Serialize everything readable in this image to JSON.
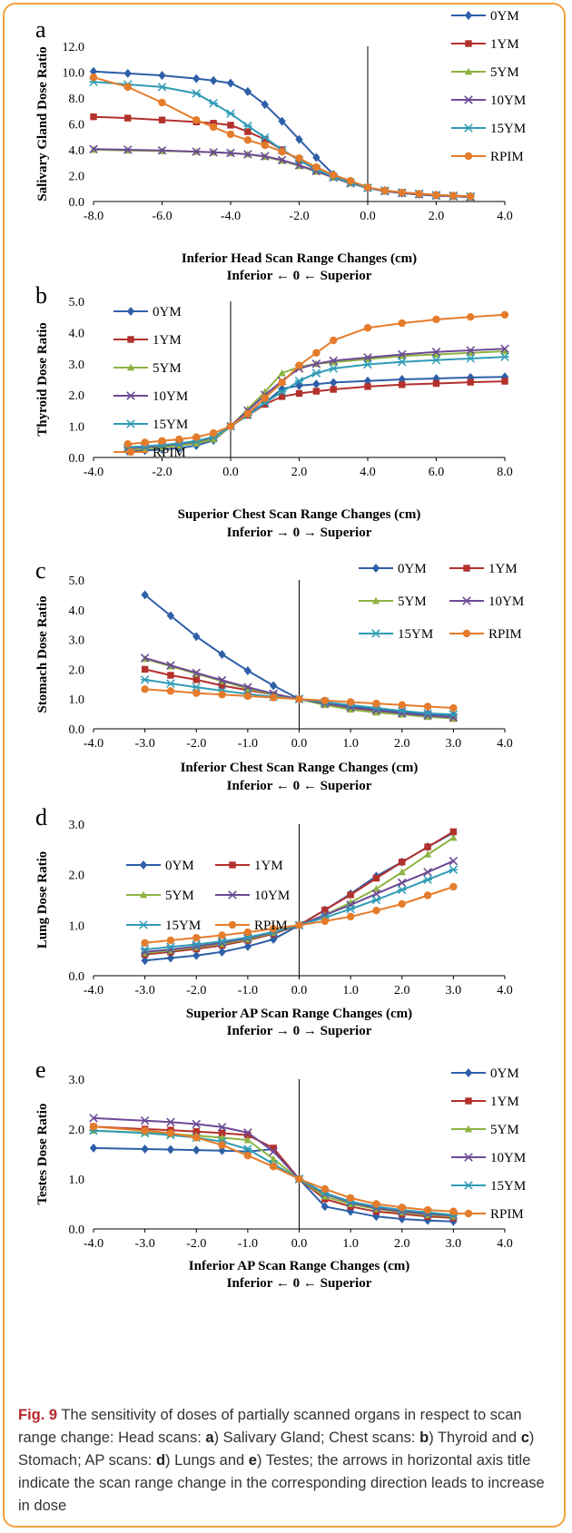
{
  "caption": {
    "label": "Fig. 9",
    "parts": [
      {
        "t": " The sensitivity of doses of partially scanned organs in respect to scan range change: Head scans: "
      },
      {
        "t": "a",
        "b": true
      },
      {
        "t": ") Salivary Gland; Chest scans: "
      },
      {
        "t": "b",
        "b": true
      },
      {
        "t": ") Thyroid and "
      },
      {
        "t": "c",
        "b": true
      },
      {
        "t": ") Stomach; AP scans: "
      },
      {
        "t": "d",
        "b": true
      },
      {
        "t": ") Lungs and "
      },
      {
        "t": "e",
        "b": true
      },
      {
        "t": ") Testes; the arrows in horizontal axis title indicate the scan range change in the corresponding direction leads to increase in dose"
      }
    ]
  },
  "series_colors": [
    "#2e5fa8",
    "#b3312c",
    "#8db342",
    "#6c4a95",
    "#2f9cb5",
    "#e57c2b"
  ],
  "series_markers": [
    "diamond",
    "square",
    "triangle",
    "x",
    "star",
    "circle"
  ],
  "chart_data": [
    {
      "panel": "a",
      "type": "line",
      "ylabel": "Salivary Gland Dose Ratio",
      "xlabel": "Inferior Head Scan Range Changes (cm)",
      "xlabel2": "Inferior ← 0 ← Superior",
      "xlim": [
        -8,
        4
      ],
      "xticks": [
        -8,
        -6,
        -4,
        -2,
        0,
        2,
        4
      ],
      "ylim": [
        0,
        12
      ],
      "yticks": [
        0,
        2,
        4,
        6,
        8,
        10,
        12
      ],
      "legend": "right-column",
      "x": [
        -8,
        -7,
        -6,
        -5,
        -4.5,
        -4,
        -3.5,
        -3,
        -2.5,
        -2,
        -1.5,
        -1,
        -0.5,
        0,
        0.5,
        1,
        1.5,
        2,
        2.5,
        3
      ],
      "series": [
        {
          "name": "0YM",
          "values": [
            10.05,
            9.9,
            9.75,
            9.5,
            9.35,
            9.15,
            8.5,
            7.5,
            6.2,
            4.8,
            3.4,
            2.1,
            1.5,
            1.05,
            0.85,
            0.65,
            0.55,
            0.5,
            0.45,
            0.4
          ]
        },
        {
          "name": "1YM",
          "values": [
            6.55,
            6.45,
            6.3,
            6.15,
            6.05,
            5.9,
            5.4,
            4.8,
            4.0,
            3.2,
            2.45,
            1.9,
            1.45,
            1.05,
            0.8,
            0.65,
            0.55,
            0.45,
            0.4,
            0.35
          ]
        },
        {
          "name": "5YM",
          "values": [
            4.0,
            3.95,
            3.9,
            3.85,
            3.8,
            3.75,
            3.65,
            3.45,
            3.15,
            2.75,
            2.3,
            1.85,
            1.4,
            1.05,
            0.8,
            0.65,
            0.55,
            0.45,
            0.4,
            0.35
          ]
        },
        {
          "name": "10YM",
          "values": [
            4.05,
            4.0,
            3.95,
            3.85,
            3.8,
            3.75,
            3.65,
            3.5,
            3.2,
            2.8,
            2.35,
            1.85,
            1.4,
            1.05,
            0.8,
            0.65,
            0.55,
            0.45,
            0.4,
            0.35
          ]
        },
        {
          "name": "15YM",
          "values": [
            9.25,
            9.05,
            8.85,
            8.35,
            7.6,
            6.8,
            5.85,
            4.95,
            4.0,
            3.2,
            2.5,
            1.9,
            1.45,
            1.05,
            0.85,
            0.7,
            0.6,
            0.5,
            0.45,
            0.4
          ]
        },
        {
          "name": "RPIM",
          "values": [
            9.6,
            8.85,
            7.65,
            6.3,
            5.75,
            5.2,
            4.75,
            4.35,
            3.85,
            3.35,
            2.65,
            2.05,
            1.6,
            1.1,
            0.85,
            0.7,
            0.6,
            0.5,
            0.45,
            0.4
          ]
        }
      ]
    },
    {
      "panel": "b",
      "type": "line",
      "ylabel": "Thyroid Dose Ratio",
      "xlabel": "Superior Chest Scan Range Changes (cm)",
      "xlabel2": "Inferior → 0 → Superior",
      "xlim": [
        -4,
        8
      ],
      "xticks": [
        -4,
        -2,
        0,
        2,
        4,
        6,
        8
      ],
      "ylim": [
        0,
        5
      ],
      "yticks": [
        0,
        1,
        2,
        3,
        4,
        5
      ],
      "legend": "left-column",
      "x": [
        -3,
        -2.5,
        -2,
        -1.5,
        -1,
        -0.5,
        0,
        0.5,
        1,
        1.5,
        2,
        2.5,
        3,
        4,
        5,
        6,
        7,
        8
      ],
      "series": [
        {
          "name": "0YM",
          "values": [
            0.2,
            0.22,
            0.26,
            0.3,
            0.38,
            0.55,
            1.0,
            1.4,
            1.75,
            2.2,
            2.3,
            2.35,
            2.4,
            2.45,
            2.5,
            2.53,
            2.56,
            2.58
          ]
        },
        {
          "name": "1YM",
          "values": [
            0.3,
            0.33,
            0.37,
            0.42,
            0.5,
            0.63,
            1.0,
            1.35,
            1.7,
            1.95,
            2.05,
            2.12,
            2.18,
            2.27,
            2.33,
            2.37,
            2.41,
            2.44
          ]
        },
        {
          "name": "5YM",
          "values": [
            0.25,
            0.28,
            0.32,
            0.38,
            0.45,
            0.58,
            1.0,
            1.55,
            2.1,
            2.7,
            2.9,
            3.0,
            3.05,
            3.15,
            3.25,
            3.3,
            3.35,
            3.4
          ]
        },
        {
          "name": "10YM",
          "values": [
            0.3,
            0.33,
            0.38,
            0.43,
            0.52,
            0.65,
            1.0,
            1.5,
            2.0,
            2.45,
            2.85,
            3.0,
            3.1,
            3.2,
            3.3,
            3.38,
            3.43,
            3.48
          ]
        },
        {
          "name": "15YM",
          "values": [
            0.33,
            0.36,
            0.4,
            0.45,
            0.53,
            0.66,
            1.0,
            1.35,
            1.75,
            2.1,
            2.45,
            2.7,
            2.85,
            2.98,
            3.06,
            3.12,
            3.17,
            3.22
          ]
        },
        {
          "name": "RPIM",
          "values": [
            0.43,
            0.48,
            0.53,
            0.58,
            0.65,
            0.78,
            1.0,
            1.4,
            1.9,
            2.4,
            2.95,
            3.35,
            3.75,
            4.15,
            4.3,
            4.42,
            4.5,
            4.57
          ]
        }
      ]
    },
    {
      "panel": "c",
      "type": "line",
      "ylabel": "Stomach Dose Ratio",
      "xlabel": "Inferior Chest Scan Range Changes (cm)",
      "xlabel2": "Inferior ← 0 ← Superior",
      "xlim": [
        -4,
        4
      ],
      "xticks": [
        -4,
        -3,
        -2,
        -1,
        0,
        1,
        2,
        3,
        4
      ],
      "ylim": [
        0,
        5
      ],
      "yticks": [
        0,
        1,
        2,
        3,
        4,
        5
      ],
      "legend": "two-column-top-right",
      "x": [
        -3,
        -2.5,
        -2,
        -1.5,
        -1,
        -0.5,
        0,
        0.5,
        1,
        1.5,
        2,
        2.5,
        3
      ],
      "series": [
        {
          "name": "0YM",
          "values": [
            4.5,
            3.8,
            3.1,
            2.5,
            1.95,
            1.45,
            1.0,
            0.85,
            0.75,
            0.65,
            0.55,
            0.5,
            0.45
          ]
        },
        {
          "name": "1YM",
          "values": [
            2.0,
            1.8,
            1.65,
            1.45,
            1.3,
            1.15,
            1.0,
            0.85,
            0.7,
            0.6,
            0.5,
            0.42,
            0.35
          ]
        },
        {
          "name": "5YM",
          "values": [
            2.35,
            2.1,
            1.85,
            1.6,
            1.35,
            1.15,
            1.0,
            0.8,
            0.65,
            0.55,
            0.48,
            0.4,
            0.35
          ]
        },
        {
          "name": "10YM",
          "values": [
            2.38,
            2.13,
            1.88,
            1.63,
            1.4,
            1.18,
            1.0,
            0.85,
            0.72,
            0.62,
            0.52,
            0.45,
            0.38
          ]
        },
        {
          "name": "15YM",
          "values": [
            1.65,
            1.52,
            1.4,
            1.28,
            1.17,
            1.07,
            1.0,
            0.9,
            0.8,
            0.7,
            0.6,
            0.52,
            0.48
          ]
        },
        {
          "name": "RPIM",
          "values": [
            1.33,
            1.27,
            1.2,
            1.15,
            1.1,
            1.05,
            1.0,
            0.95,
            0.9,
            0.85,
            0.8,
            0.75,
            0.7
          ]
        }
      ]
    },
    {
      "panel": "d",
      "type": "line",
      "ylabel": "Lung Dose Ratio",
      "xlabel": "Superior AP Scan Range Changes (cm)",
      "xlabel2": "Inferior → 0 → Superior",
      "xlim": [
        -4,
        4
      ],
      "xticks": [
        -4,
        -3,
        -2,
        -1,
        0,
        1,
        2,
        3,
        4
      ],
      "ylim": [
        0,
        3
      ],
      "yticks": [
        0,
        1,
        2,
        3
      ],
      "legend": "two-column-top-left",
      "x": [
        -3,
        -2.5,
        -2,
        -1.5,
        -1,
        -0.5,
        0,
        0.5,
        1,
        1.5,
        2,
        2.5,
        3
      ],
      "series": [
        {
          "name": "0YM",
          "values": [
            0.3,
            0.35,
            0.4,
            0.47,
            0.58,
            0.72,
            1.0,
            1.3,
            1.62,
            1.97,
            2.25,
            2.55,
            2.83
          ]
        },
        {
          "name": "1YM",
          "values": [
            0.42,
            0.47,
            0.53,
            0.6,
            0.7,
            0.83,
            1.0,
            1.3,
            1.6,
            1.93,
            2.25,
            2.55,
            2.85
          ]
        },
        {
          "name": "5YM",
          "values": [
            0.45,
            0.5,
            0.56,
            0.63,
            0.72,
            0.85,
            1.0,
            1.2,
            1.45,
            1.72,
            2.05,
            2.4,
            2.73
          ]
        },
        {
          "name": "10YM",
          "values": [
            0.47,
            0.52,
            0.58,
            0.65,
            0.74,
            0.86,
            1.0,
            1.2,
            1.4,
            1.62,
            1.84,
            2.05,
            2.27
          ]
        },
        {
          "name": "15YM",
          "values": [
            0.52,
            0.57,
            0.62,
            0.68,
            0.76,
            0.87,
            1.0,
            1.15,
            1.32,
            1.5,
            1.7,
            1.9,
            2.1
          ]
        },
        {
          "name": "RPIM",
          "values": [
            0.65,
            0.7,
            0.75,
            0.8,
            0.86,
            0.93,
            1.0,
            1.08,
            1.17,
            1.29,
            1.42,
            1.59,
            1.76
          ]
        }
      ]
    },
    {
      "panel": "e",
      "type": "line",
      "ylabel": "Testes Dose Ratio",
      "xlabel": "Inferior AP Scan Range Changes (cm)",
      "xlabel2": "Inferior ← 0 ← Superior",
      "xlim": [
        -4,
        4
      ],
      "xticks": [
        -4,
        -3,
        -2,
        -1,
        0,
        1,
        2,
        3,
        4
      ],
      "ylim": [
        0,
        3
      ],
      "yticks": [
        0,
        1,
        2,
        3
      ],
      "legend": "right-column",
      "x": [
        -4,
        -3,
        -2.5,
        -2,
        -1.5,
        -1,
        -0.5,
        0,
        0.5,
        1,
        1.5,
        2,
        2.5,
        3
      ],
      "series": [
        {
          "name": "0YM",
          "values": [
            1.62,
            1.6,
            1.59,
            1.58,
            1.57,
            1.55,
            1.6,
            1.0,
            0.45,
            0.35,
            0.25,
            0.2,
            0.17,
            0.15
          ]
        },
        {
          "name": "1YM",
          "values": [
            2.05,
            2.0,
            1.98,
            1.95,
            1.92,
            1.88,
            1.62,
            1.0,
            0.6,
            0.45,
            0.35,
            0.3,
            0.25,
            0.22
          ]
        },
        {
          "name": "5YM",
          "values": [
            1.97,
            1.93,
            1.9,
            1.87,
            1.83,
            1.78,
            1.4,
            1.0,
            0.65,
            0.5,
            0.4,
            0.33,
            0.28,
            0.25
          ]
        },
        {
          "name": "10YM",
          "values": [
            2.22,
            2.17,
            2.14,
            2.1,
            2.04,
            1.93,
            1.55,
            1.0,
            0.7,
            0.53,
            0.42,
            0.35,
            0.3,
            0.27
          ]
        },
        {
          "name": "15YM",
          "values": [
            1.97,
            1.92,
            1.88,
            1.83,
            1.75,
            1.6,
            1.3,
            1.0,
            0.72,
            0.55,
            0.45,
            0.38,
            0.33,
            0.28
          ]
        },
        {
          "name": "RPIM",
          "values": [
            2.05,
            1.97,
            1.92,
            1.83,
            1.68,
            1.47,
            1.25,
            1.0,
            0.8,
            0.62,
            0.5,
            0.43,
            0.38,
            0.35
          ]
        }
      ]
    }
  ]
}
